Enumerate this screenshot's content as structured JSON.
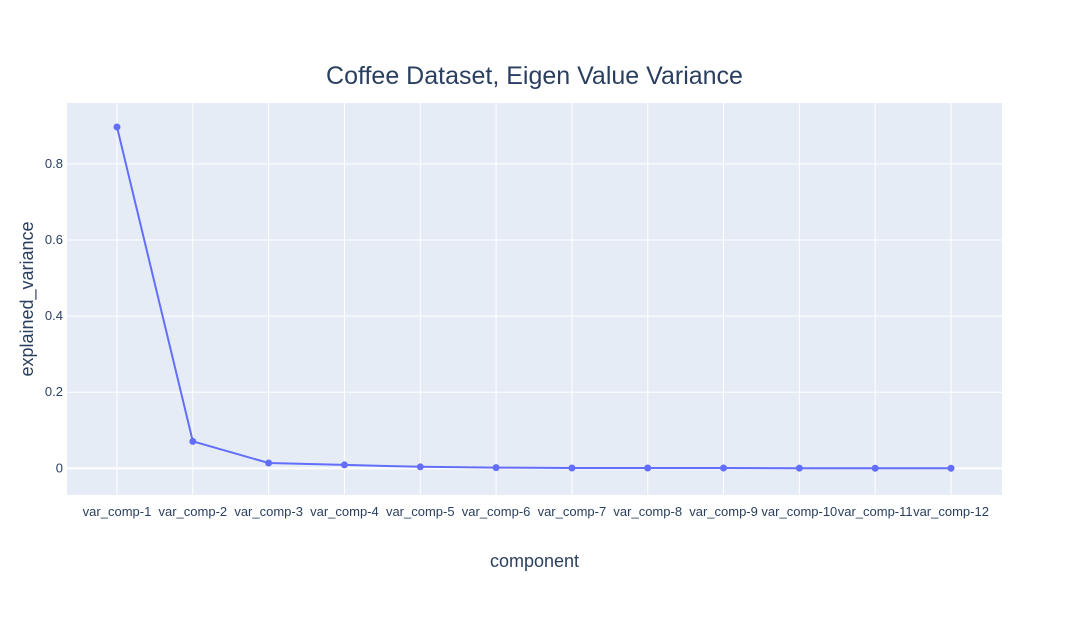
{
  "chart_data": {
    "type": "line",
    "title": "Coffee Dataset, Eigen Value Variance",
    "xlabel": "component",
    "ylabel": "explained_variance",
    "categories": [
      "var_comp-1",
      "var_comp-2",
      "var_comp-3",
      "var_comp-4",
      "var_comp-5",
      "var_comp-6",
      "var_comp-7",
      "var_comp-8",
      "var_comp-9",
      "var_comp-10",
      "var_comp-11",
      "var_comp-12"
    ],
    "values": [
      0.897,
      0.071,
      0.014,
      0.009,
      0.004,
      0.002,
      0.001,
      0.001,
      0.001,
      0.0005,
      0.0003,
      0.0002
    ],
    "ylim": [
      -0.07,
      0.96
    ],
    "yticks": [
      0,
      0.2,
      0.4,
      0.6,
      0.8
    ],
    "ytick_labels": [
      "0",
      "0.2",
      "0.4",
      "0.6",
      "0.8"
    ],
    "grid": true,
    "legend": "none",
    "colors": {
      "line": "#636efa",
      "plot_bg": "#e5ecf6",
      "grid": "#ffffff",
      "text": "#2a3f5f"
    }
  }
}
